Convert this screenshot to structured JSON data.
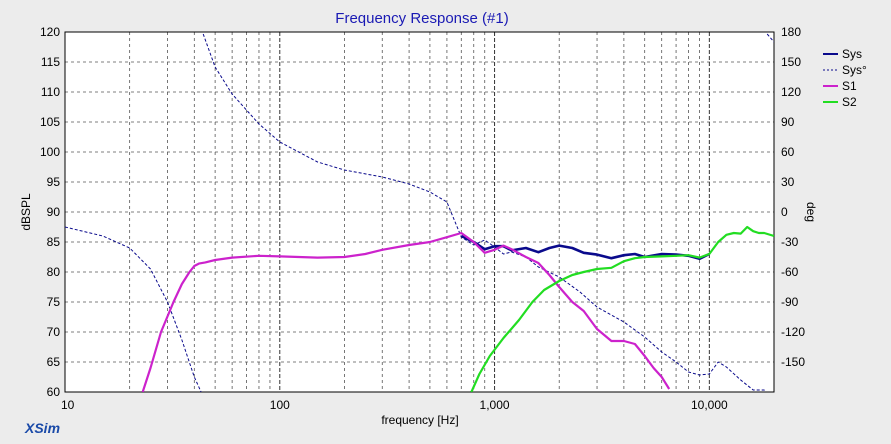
{
  "chart_data": {
    "type": "line",
    "title": "Frequency Response (#1)",
    "xlabel": "frequency [Hz]",
    "ylabel": "dBSPL",
    "y2label": "deg",
    "brand": "XSim",
    "x_scale": "log",
    "xlim": [
      10,
      20000
    ],
    "ylim": [
      60,
      120
    ],
    "y2lim": [
      -180,
      180
    ],
    "grid": true,
    "legend_position": "top-right",
    "x_tick_labels": [
      {
        "value": 10,
        "label": "10"
      },
      {
        "value": 100,
        "label": "100"
      },
      {
        "value": 1000,
        "label": "1,000"
      },
      {
        "value": 10000,
        "label": "10,000"
      }
    ],
    "y_ticks": [
      60,
      65,
      70,
      75,
      80,
      85,
      90,
      95,
      100,
      105,
      110,
      115,
      120
    ],
    "y2_ticks": [
      -150,
      -120,
      -90,
      -60,
      -30,
      0,
      30,
      60,
      90,
      120,
      150,
      180
    ],
    "colors": {
      "sys": "#0a0a8c",
      "s1": "#cc22cc",
      "s2": "#22dd22",
      "title": "#1a1ab4",
      "plot_bg": "#ffffff"
    },
    "series": [
      {
        "name": "Sys",
        "axis": "left",
        "style": "solid-bold",
        "color": "#0a0a8c",
        "x": [
          700,
          800,
          900,
          1000,
          1100,
          1200,
          1400,
          1600,
          1800,
          2000,
          2300,
          2600,
          3000,
          3500,
          4000,
          4500,
          5000,
          6000,
          7000,
          8000,
          9000,
          10000
        ],
        "y": [
          86.0,
          85.0,
          83.8,
          84.3,
          84.3,
          83.6,
          84.0,
          83.3,
          84.0,
          84.4,
          84.0,
          83.2,
          82.9,
          82.3,
          82.8,
          83.0,
          82.5,
          83.0,
          82.9,
          82.7,
          82.2,
          83.0
        ]
      },
      {
        "name": "Sys°",
        "axis": "right",
        "style": "dashed",
        "color": "#0a0a8c",
        "x": [
          10,
          15,
          20,
          25,
          30,
          35,
          40,
          43,
          44,
          50,
          60,
          80,
          100,
          150,
          200,
          300,
          400,
          500,
          600,
          700,
          800,
          900,
          1000,
          1100,
          1200,
          1400,
          1600,
          2000,
          2500,
          3000,
          4000,
          5000,
          6000,
          7000,
          8000,
          9000,
          10000,
          11000,
          12000,
          14000,
          16000,
          18000,
          18300,
          18600,
          20000
        ],
        "y": [
          -15,
          -24,
          -36,
          -57,
          -90,
          -128,
          -165,
          -180,
          178,
          145,
          118,
          88,
          70,
          50,
          42,
          35,
          28,
          20,
          10,
          -25,
          -33,
          -28,
          -35,
          -42,
          -40,
          -45,
          -55,
          -65,
          -80,
          -95,
          -110,
          -125,
          -140,
          -150,
          -160,
          -163,
          -162,
          -150,
          -155,
          -168,
          -178,
          -178,
          -180,
          178,
          170
        ]
      },
      {
        "name": "S1",
        "axis": "left",
        "style": "solid",
        "color": "#cc22cc",
        "x": [
          23,
          25,
          28,
          32,
          35,
          38,
          40,
          42,
          45,
          50,
          60,
          80,
          100,
          150,
          200,
          250,
          300,
          400,
          500,
          600,
          700,
          800,
          900,
          1000,
          1100,
          1200,
          1400,
          1600,
          1800,
          2000,
          2300,
          2600,
          3000,
          3500,
          4000,
          4500,
          5000,
          5500,
          6000,
          6500
        ],
        "y": [
          60,
          64,
          70,
          75,
          78,
          80,
          81,
          81.4,
          81.6,
          82.0,
          82.4,
          82.7,
          82.6,
          82.4,
          82.5,
          83.0,
          83.7,
          84.5,
          85.0,
          85.8,
          86.5,
          85.0,
          83.2,
          83.7,
          84.4,
          83.8,
          82.5,
          81.5,
          79.5,
          77.5,
          75.0,
          73.5,
          70.5,
          68.5,
          68.5,
          68.0,
          66.0,
          64.0,
          62.5,
          60.5
        ]
      },
      {
        "name": "S2",
        "axis": "left",
        "style": "solid",
        "color": "#22dd22",
        "x": [
          780,
          850,
          950,
          1100,
          1300,
          1500,
          1700,
          2000,
          2300,
          2600,
          3000,
          3500,
          4000,
          4500,
          5000,
          6000,
          7000,
          8000,
          9000,
          10000,
          11000,
          12000,
          13000,
          14000,
          15000,
          16000,
          17000,
          18000,
          20000
        ],
        "y": [
          60,
          63,
          66,
          69,
          72,
          75,
          77,
          78.5,
          79.5,
          80.0,
          80.5,
          80.7,
          81.8,
          82.3,
          82.5,
          82.6,
          82.7,
          82.8,
          82.4,
          83.0,
          85.0,
          86.2,
          86.5,
          86.4,
          87.5,
          86.8,
          86.5,
          86.5,
          86.0
        ]
      }
    ]
  }
}
